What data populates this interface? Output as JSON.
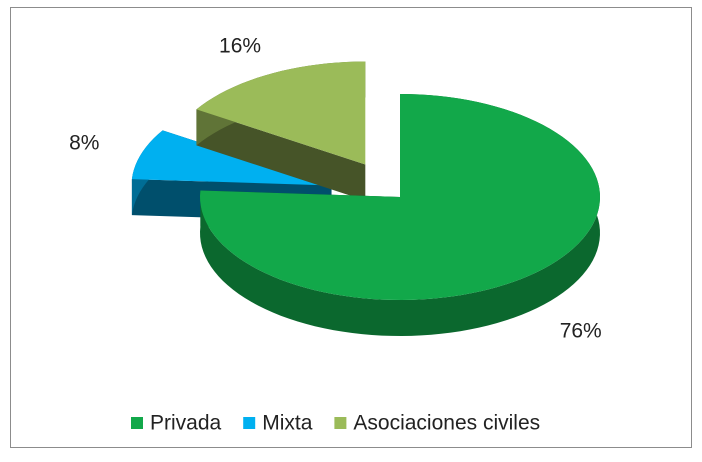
{
  "chart_data": {
    "type": "pie",
    "categories": [
      "Privada",
      "Mixta",
      "Asociaciones civiles"
    ],
    "values": [
      76,
      8,
      16
    ],
    "value_labels": [
      "76%",
      "8%",
      "16%"
    ],
    "colors": [
      "#12a84a",
      "#00b0f0",
      "#9bbb59"
    ],
    "legend": "bottom"
  }
}
